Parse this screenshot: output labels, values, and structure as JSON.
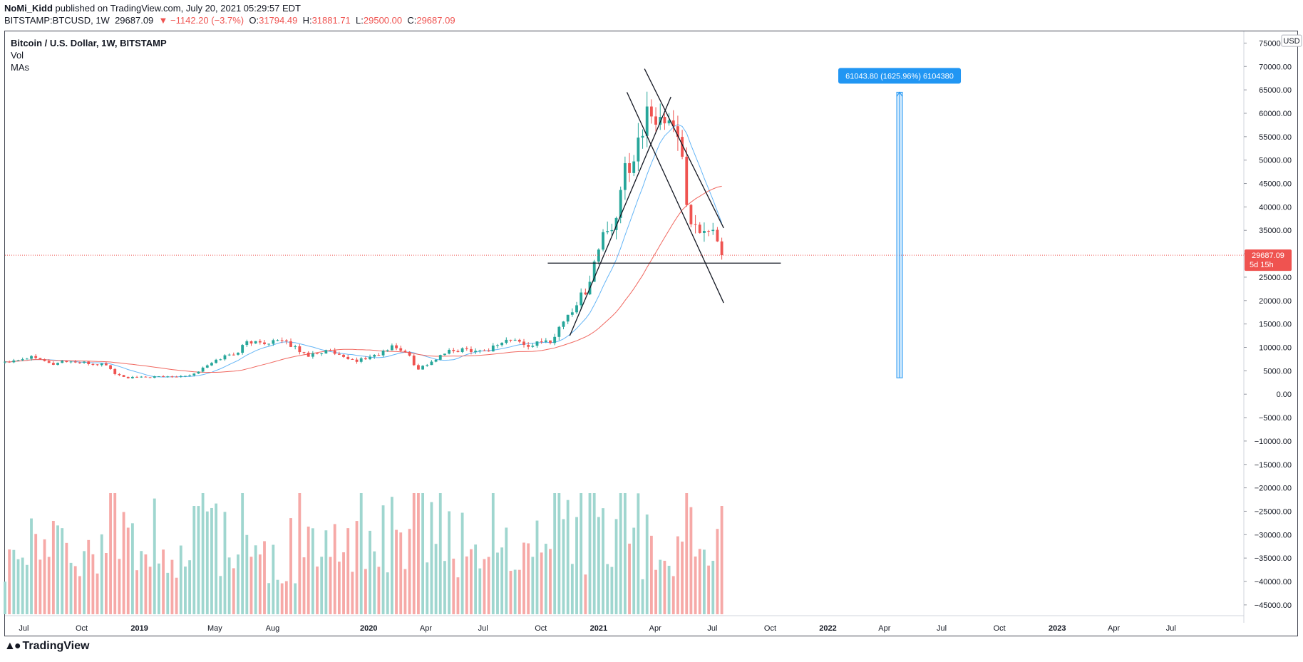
{
  "header": {
    "author": "NoMi_Kidd",
    "published_text": "published on TradingView.com, July 20, 2021 05:29:57 EDT"
  },
  "symbol_line": {
    "symbol": "BITSTAMP:BTCUSD, 1W",
    "last": "29687.09",
    "change": "▼ −1142.20 (−3.7%)",
    "o_label": "O:",
    "o": "31794.49",
    "h_label": "H:",
    "h": "31881.71",
    "l_label": "L:",
    "l": "29500.00",
    "c_label": "C:",
    "c": "29687.09"
  },
  "legend": {
    "title": "Bitcoin / U.S. Dollar, 1W, BITSTAMP",
    "vol": "Vol",
    "mas": "MAs"
  },
  "footer": {
    "brand": "TradingView",
    "logo_icon": "tradingview-logo-icon"
  },
  "colors": {
    "up": "#26a69a",
    "down": "#ef5350",
    "vol_up": "#9fd6cf",
    "vol_down": "#f6a9a7",
    "ma_fast": "#64b5f6",
    "ma_slow": "#f06860",
    "price_line": "#ef5350",
    "measure": "#2196f3"
  },
  "chart_data": {
    "type": "candlestick",
    "y_axis": {
      "currency": "USD",
      "ticks": [
        75000,
        70000,
        65000,
        60000,
        55000,
        50000,
        45000,
        40000,
        35000,
        30000,
        25000,
        20000,
        15000,
        10000,
        5000,
        0,
        -5000,
        -10000,
        -15000,
        -20000,
        -25000,
        -30000,
        -35000,
        -40000,
        -45000
      ],
      "tick_labels": [
        "75000.00",
        "70000.00",
        "65000.00",
        "60000.00",
        "55000.00",
        "50000.00",
        "45000.00",
        "40000.00",
        "35000.00",
        "30000.00",
        "25000.00",
        "20000.00",
        "15000.00",
        "10000.00",
        "5000.00",
        "0.00",
        "−5000.00",
        "−10000.00",
        "−15000.00",
        "−20000.00",
        "−25000.00",
        "−30000.00",
        "−35000.00",
        "−40000.00",
        "−45000.00"
      ],
      "range": [
        -47000,
        77500
      ]
    },
    "x_axis": {
      "labels": [
        "Jul",
        "Oct",
        "2019",
        "May",
        "Aug",
        "2020",
        "Apr",
        "Jul",
        "Oct",
        "2021",
        "Apr",
        "Jul",
        "Oct",
        "2022",
        "Apr",
        "Jul",
        "Oct",
        "2023",
        "Apr",
        "Jul"
      ],
      "label_dates": [
        "2018-07-01",
        "2018-10-01",
        "2019-01-01",
        "2019-05-01",
        "2019-08-01",
        "2020-01-01",
        "2020-04-01",
        "2020-07-01",
        "2020-10-01",
        "2021-01-01",
        "2021-04-01",
        "2021-07-01",
        "2021-10-01",
        "2022-01-01",
        "2022-04-01",
        "2022-07-01",
        "2022-10-01",
        "2023-01-01",
        "2023-04-01",
        "2023-07-01"
      ],
      "range": [
        "2018-06-01",
        "2023-10-25"
      ]
    },
    "current_price": {
      "value": 29687.09,
      "label": "29687.09",
      "countdown": "5d 15h"
    },
    "anchors": [
      [
        "2018-06-01",
        7000
      ],
      [
        "2018-07-23",
        8200
      ],
      [
        "2018-08-13",
        6300
      ],
      [
        "2018-09-03",
        7100
      ],
      [
        "2018-10-15",
        6500
      ],
      [
        "2018-11-12",
        6300
      ],
      [
        "2018-11-19",
        4600
      ],
      [
        "2018-12-10",
        3500
      ],
      [
        "2019-01-07",
        3600
      ],
      [
        "2019-02-18",
        3800
      ],
      [
        "2019-03-25",
        4100
      ],
      [
        "2019-04-08",
        5200
      ],
      [
        "2019-05-13",
        8000
      ],
      [
        "2019-06-03",
        8700
      ],
      [
        "2019-06-24",
        11500
      ],
      [
        "2019-07-08",
        10800
      ],
      [
        "2019-08-05",
        11500
      ],
      [
        "2019-09-02",
        10400
      ],
      [
        "2019-09-23",
        8300
      ],
      [
        "2019-10-28",
        9300
      ],
      [
        "2019-11-25",
        7400
      ],
      [
        "2019-12-16",
        7200
      ],
      [
        "2020-01-20",
        8700
      ],
      [
        "2020-02-10",
        10300
      ],
      [
        "2020-03-09",
        8000
      ],
      [
        "2020-03-16",
        5200
      ],
      [
        "2020-04-13",
        7100
      ],
      [
        "2020-05-04",
        9000
      ],
      [
        "2020-06-01",
        9600
      ],
      [
        "2020-07-06",
        9200
      ],
      [
        "2020-07-27",
        11000
      ],
      [
        "2020-08-17",
        11800
      ],
      [
        "2020-09-07",
        10300
      ],
      [
        "2020-10-19",
        11500
      ],
      [
        "2020-11-02",
        15000
      ],
      [
        "2020-11-23",
        18500
      ],
      [
        "2020-12-14",
        23000
      ],
      [
        "2020-12-28",
        29000
      ],
      [
        "2021-01-11",
        36000
      ],
      [
        "2021-01-25",
        33000
      ],
      [
        "2021-02-08",
        47000
      ],
      [
        "2021-02-22",
        50000
      ],
      [
        "2021-03-15",
        58500
      ],
      [
        "2021-04-05",
        59000
      ],
      [
        "2021-04-12",
        60500
      ],
      [
        "2021-04-26",
        55000
      ],
      [
        "2021-05-10",
        57500
      ],
      [
        "2021-05-17",
        46000
      ],
      [
        "2021-05-24",
        36000
      ],
      [
        "2021-06-07",
        37000
      ],
      [
        "2021-06-21",
        33000
      ],
      [
        "2021-07-05",
        34000
      ],
      [
        "2021-07-19",
        29687
      ]
    ],
    "volume_axis_note": "volume bars share the lower pane",
    "annotations": {
      "measure_label": "61043.80 (1625.96%) 6104380",
      "measure_range": [
        3500,
        64500
      ],
      "measure_date": "2022-04-25",
      "horizontal_level": {
        "y": 28000,
        "from": "2020-10-12",
        "to": "2021-10-18"
      },
      "trendlines": [
        {
          "from": [
            "2020-11-16",
            12500
          ],
          "to": [
            "2021-04-26",
            63500
          ]
        },
        {
          "from": [
            "2021-02-15",
            64500
          ],
          "to": [
            "2021-07-19",
            19500
          ]
        },
        {
          "from": [
            "2021-03-15",
            69500
          ],
          "to": [
            "2021-07-19",
            35500
          ]
        }
      ]
    }
  }
}
